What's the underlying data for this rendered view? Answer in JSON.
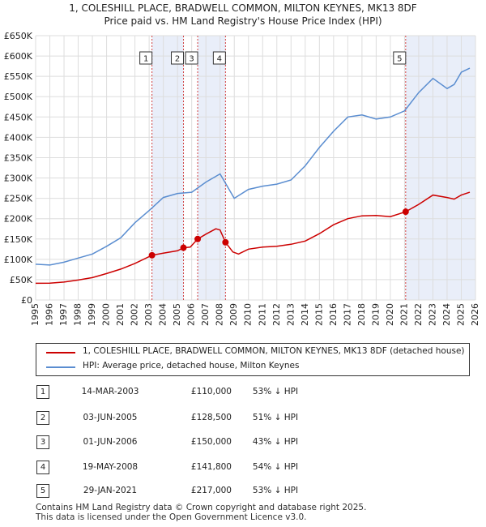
{
  "chart_data": {
    "type": "line",
    "title": "1, COLESHILL PLACE, BRADWELL COMMON, MILTON KEYNES, MK13 8DF",
    "subtitle": "Price paid vs. HM Land Registry's House Price Index (HPI)",
    "xlabel": "",
    "ylabel": "",
    "xlim": [
      1995,
      2026
    ],
    "ylim": [
      0,
      650000
    ],
    "grid": true,
    "x_ticks": [
      "1995",
      "1996",
      "1997",
      "1998",
      "1999",
      "2000",
      "2001",
      "2002",
      "2003",
      "2004",
      "2005",
      "2006",
      "2007",
      "2008",
      "2009",
      "2010",
      "2011",
      "2012",
      "2013",
      "2014",
      "2015",
      "2016",
      "2017",
      "2018",
      "2019",
      "2020",
      "2021",
      "2022",
      "2023",
      "2024",
      "2025",
      "2026"
    ],
    "y_ticks": [
      {
        "value": 0,
        "label": "£0"
      },
      {
        "value": 50000,
        "label": "£50K"
      },
      {
        "value": 100000,
        "label": "£100K"
      },
      {
        "value": 150000,
        "label": "£150K"
      },
      {
        "value": 200000,
        "label": "£200K"
      },
      {
        "value": 250000,
        "label": "£250K"
      },
      {
        "value": 300000,
        "label": "£300K"
      },
      {
        "value": 350000,
        "label": "£350K"
      },
      {
        "value": 400000,
        "label": "£400K"
      },
      {
        "value": 450000,
        "label": "£450K"
      },
      {
        "value": 500000,
        "label": "£500K"
      },
      {
        "value": 550000,
        "label": "£550K"
      },
      {
        "value": 600000,
        "label": "£600K"
      },
      {
        "value": 650000,
        "label": "£650K"
      }
    ],
    "shaded_ranges": [
      {
        "start": 2003.2,
        "end": 2005.42
      },
      {
        "start": 2006.42,
        "end": 2008.38
      },
      {
        "start": 2021.08,
        "end": 2026.0
      }
    ],
    "series": [
      {
        "name": "1, COLESHILL PLACE, BRADWELL COMMON, MILTON KEYNES, MK13 8DF (detached house)",
        "color": "#cc0000",
        "points": [
          [
            1995.0,
            41000
          ],
          [
            1996.0,
            41500
          ],
          [
            1997.0,
            44000
          ],
          [
            1998.0,
            49000
          ],
          [
            1999.0,
            55000
          ],
          [
            2000.0,
            65000
          ],
          [
            2001.0,
            76000
          ],
          [
            2002.0,
            90000
          ],
          [
            2003.2,
            110000
          ],
          [
            2004.0,
            115000
          ],
          [
            2005.0,
            121000
          ],
          [
            2005.42,
            128500
          ],
          [
            2005.9,
            130000
          ],
          [
            2006.42,
            150000
          ],
          [
            2007.0,
            162000
          ],
          [
            2007.7,
            175000
          ],
          [
            2008.0,
            172000
          ],
          [
            2008.38,
            141800
          ],
          [
            2008.9,
            118000
          ],
          [
            2009.3,
            113000
          ],
          [
            2010.0,
            125000
          ],
          [
            2011.0,
            130000
          ],
          [
            2012.0,
            132000
          ],
          [
            2013.0,
            137000
          ],
          [
            2014.0,
            145000
          ],
          [
            2015.0,
            163000
          ],
          [
            2016.0,
            185000
          ],
          [
            2017.0,
            200000
          ],
          [
            2018.0,
            207000
          ],
          [
            2019.0,
            208000
          ],
          [
            2020.0,
            205000
          ],
          [
            2021.08,
            217000
          ],
          [
            2022.0,
            235000
          ],
          [
            2023.0,
            258000
          ],
          [
            2024.0,
            252000
          ],
          [
            2024.5,
            248000
          ],
          [
            2025.0,
            258000
          ],
          [
            2025.6,
            265000
          ]
        ]
      },
      {
        "name": "HPI: Average price, detached house, Milton Keynes",
        "color": "#5a8dd0",
        "points": [
          [
            1995.0,
            88000
          ],
          [
            1996.0,
            86000
          ],
          [
            1997.0,
            93000
          ],
          [
            1998.0,
            103000
          ],
          [
            1999.0,
            113000
          ],
          [
            2000.0,
            132000
          ],
          [
            2001.0,
            153000
          ],
          [
            2002.0,
            190000
          ],
          [
            2003.0,
            220000
          ],
          [
            2004.0,
            252000
          ],
          [
            2005.0,
            262000
          ],
          [
            2006.0,
            265000
          ],
          [
            2007.0,
            290000
          ],
          [
            2008.0,
            310000
          ],
          [
            2008.5,
            280000
          ],
          [
            2009.0,
            250000
          ],
          [
            2010.0,
            272000
          ],
          [
            2011.0,
            280000
          ],
          [
            2012.0,
            285000
          ],
          [
            2013.0,
            295000
          ],
          [
            2014.0,
            330000
          ],
          [
            2015.0,
            375000
          ],
          [
            2016.0,
            415000
          ],
          [
            2017.0,
            450000
          ],
          [
            2018.0,
            455000
          ],
          [
            2019.0,
            445000
          ],
          [
            2020.0,
            450000
          ],
          [
            2021.0,
            465000
          ],
          [
            2022.0,
            510000
          ],
          [
            2023.0,
            545000
          ],
          [
            2024.0,
            520000
          ],
          [
            2024.5,
            530000
          ],
          [
            2025.0,
            560000
          ],
          [
            2025.6,
            570000
          ]
        ]
      }
    ],
    "transactions": [
      {
        "id": "1",
        "x": 2003.2,
        "price": 110000
      },
      {
        "id": "2",
        "x": 2005.42,
        "price": 128500
      },
      {
        "id": "3",
        "x": 2006.42,
        "price": 150000
      },
      {
        "id": "4",
        "x": 2008.38,
        "price": 141800
      },
      {
        "id": "5",
        "x": 2021.08,
        "price": 217000
      }
    ]
  },
  "legend": {
    "property_label": "1, COLESHILL PLACE, BRADWELL COMMON, MILTON KEYNES, MK13 8DF (detached house)",
    "hpi_label": "HPI: Average price, detached house, Milton Keynes"
  },
  "table": [
    {
      "id": "1",
      "date": "14-MAR-2003",
      "price": "£110,000",
      "hpi": "53% ↓ HPI"
    },
    {
      "id": "2",
      "date": "03-JUN-2005",
      "price": "£128,500",
      "hpi": "51% ↓ HPI"
    },
    {
      "id": "3",
      "date": "01-JUN-2006",
      "price": "£150,000",
      "hpi": "43% ↓ HPI"
    },
    {
      "id": "4",
      "date": "19-MAY-2008",
      "price": "£141,800",
      "hpi": "54% ↓ HPI"
    },
    {
      "id": "5",
      "date": "29-JAN-2021",
      "price": "£217,000",
      "hpi": "53% ↓ HPI"
    }
  ],
  "footer": {
    "line1": "Contains HM Land Registry data © Crown copyright and database right 2025.",
    "line2": "This data is licensed under the Open Government Licence v3.0."
  }
}
